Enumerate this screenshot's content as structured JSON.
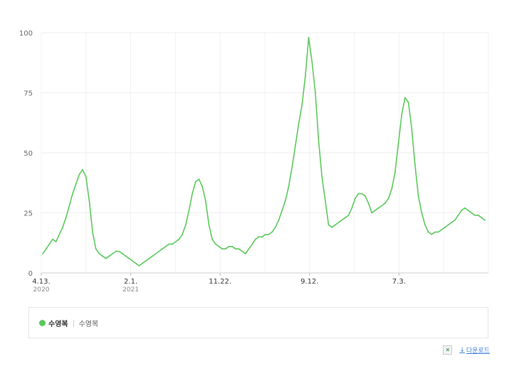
{
  "chart_data": {
    "type": "line",
    "title": "",
    "xlabel": "",
    "ylabel": "",
    "ylim": [
      0,
      100
    ],
    "yticks": [
      "0",
      "25",
      "50",
      "75",
      "100"
    ],
    "xticks": [
      {
        "label": "4.13.",
        "sub": "2020"
      },
      {
        "label": "2.1.",
        "sub": "2021"
      },
      {
        "label": "11.22.",
        "sub": ""
      },
      {
        "label": "9.12.",
        "sub": ""
      },
      {
        "label": "7.3.",
        "sub": ""
      }
    ],
    "grid": true,
    "legend_position": "bottom",
    "series": [
      {
        "name": "수영복",
        "color": "#5ac85a",
        "values": [
          8,
          10,
          12,
          14,
          13,
          16,
          19,
          23,
          28,
          33,
          37,
          41,
          43,
          40,
          30,
          17,
          10,
          8,
          7,
          6,
          7,
          8,
          9,
          9,
          8,
          7,
          6,
          5,
          4,
          3,
          4,
          5,
          6,
          7,
          8,
          9,
          10,
          11,
          12,
          12,
          13,
          14,
          16,
          20,
          26,
          33,
          38,
          39,
          36,
          30,
          20,
          14,
          12,
          11,
          10,
          10,
          11,
          11,
          10,
          10,
          9,
          8,
          10,
          12,
          14,
          15,
          15,
          16,
          16,
          17,
          19,
          22,
          26,
          30,
          36,
          44,
          53,
          62,
          70,
          82,
          98,
          88,
          75,
          55,
          40,
          30,
          20,
          19,
          20,
          21,
          22,
          23,
          24,
          27,
          31,
          33,
          33,
          32,
          29,
          25,
          26,
          27,
          28,
          29,
          31,
          35,
          42,
          54,
          66,
          73,
          71,
          60,
          45,
          32,
          25,
          20,
          17,
          16,
          17,
          17,
          18,
          19,
          20,
          21,
          22,
          24,
          26,
          27,
          26,
          25,
          24,
          24,
          23,
          22
        ]
      }
    ]
  },
  "legend": {
    "series_name": "수영복",
    "series_sub": "수영복",
    "color": "#5ac85a"
  },
  "tools": {
    "excel_icon": "excel-icon",
    "download_label": "다운로드"
  }
}
